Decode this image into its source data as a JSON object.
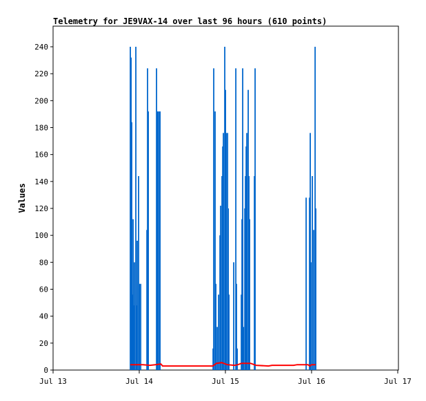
{
  "chart_data": {
    "type": "bar",
    "title": "Telemetry for JE9VAX-14 over last 96 hours (610 points)",
    "xlabel": "",
    "ylabel": "Values",
    "ylim": [
      0,
      255
    ],
    "yticks": [
      0,
      20,
      40,
      60,
      80,
      100,
      120,
      140,
      160,
      180,
      200,
      220,
      240
    ],
    "xlim": [
      "Jul 13 00:00",
      "Jul 17 00:00"
    ],
    "xticks": [
      "Jul 13",
      "Jul 14",
      "Jul 15",
      "Jul 16",
      "Jul 17"
    ],
    "grid": false,
    "colors": {
      "bars": "#0066cc",
      "line": "#ff0000"
    },
    "series": [
      {
        "type": "bar",
        "points": [
          [
            "Jul 13 21:30",
            240
          ],
          [
            "Jul 13 21:42",
            232
          ],
          [
            "Jul 13 21:53",
            184
          ],
          [
            "Jul 13 22:05",
            56
          ],
          [
            "Jul 13 22:16",
            112
          ],
          [
            "Jul 13 22:28",
            48
          ],
          [
            "Jul 13 22:39",
            80
          ],
          [
            "Jul 13 23:02",
            240
          ],
          [
            "Jul 13 23:14",
            48
          ],
          [
            "Jul 13 23:25",
            96
          ],
          [
            "Jul 13 23:48",
            144
          ],
          [
            "Jul 14 00:00",
            64
          ],
          [
            "Jul 14 00:23",
            64
          ],
          [
            "Jul 14 02:07",
            104
          ],
          [
            "Jul 14 02:18",
            224
          ],
          [
            "Jul 14 02:30",
            192
          ],
          [
            "Jul 14 04:48",
            224
          ],
          [
            "Jul 14 04:59",
            192
          ],
          [
            "Jul 14 05:11",
            192
          ],
          [
            "Jul 14 05:34",
            192
          ],
          [
            "Jul 14 05:46",
            192
          ],
          [
            "Jul 14 20:33",
            16
          ],
          [
            "Jul 14 20:44",
            224
          ],
          [
            "Jul 14 21:07",
            192
          ],
          [
            "Jul 14 21:19",
            64
          ],
          [
            "Jul 14 21:42",
            32
          ],
          [
            "Jul 14 22:05",
            56
          ],
          [
            "Jul 14 22:28",
            100
          ],
          [
            "Jul 14 22:39",
            122
          ],
          [
            "Jul 14 23:02",
            144
          ],
          [
            "Jul 14 23:14",
            166
          ],
          [
            "Jul 14 23:25",
            176
          ],
          [
            "Jul 14 23:48",
            240
          ],
          [
            "Jul 15 00:00",
            208
          ],
          [
            "Jul 15 00:12",
            176
          ],
          [
            "Jul 15 00:35",
            176
          ],
          [
            "Jul 15 00:46",
            120
          ],
          [
            "Jul 15 00:58",
            56
          ],
          [
            "Jul 15 02:18",
            80
          ],
          [
            "Jul 15 02:53",
            224
          ],
          [
            "Jul 15 03:04",
            64
          ],
          [
            "Jul 15 03:16",
            16
          ],
          [
            "Jul 15 04:25",
            56
          ],
          [
            "Jul 15 04:36",
            112
          ],
          [
            "Jul 15 04:48",
            224
          ],
          [
            "Jul 15 05:00",
            32
          ],
          [
            "Jul 15 05:23",
            120
          ],
          [
            "Jul 15 05:34",
            144
          ],
          [
            "Jul 15 05:46",
            166
          ],
          [
            "Jul 15 05:57",
            176
          ],
          [
            "Jul 15 06:20",
            208
          ],
          [
            "Jul 15 06:32",
            144
          ],
          [
            "Jul 15 06:43",
            112
          ],
          [
            "Jul 15 08:04",
            144
          ],
          [
            "Jul 15 08:15",
            224
          ],
          [
            "Jul 15 22:28",
            128
          ],
          [
            "Jul 15 23:25",
            128
          ],
          [
            "Jul 15 23:37",
            176
          ],
          [
            "Jul 15 23:48",
            80
          ],
          [
            "Jul 16 00:12",
            144
          ],
          [
            "Jul 16 00:35",
            104
          ],
          [
            "Jul 16 00:58",
            240
          ],
          [
            "Jul 16 01:09",
            120
          ]
        ]
      },
      {
        "type": "line",
        "points": [
          [
            "Jul 13 21:30",
            4
          ],
          [
            "Jul 14 01:00",
            4
          ],
          [
            "Jul 14 03:00",
            3.5
          ],
          [
            "Jul 14 04:30",
            4
          ],
          [
            "Jul 14 06:00",
            4.5
          ],
          [
            "Jul 14 06:30",
            3
          ],
          [
            "Jul 14 20:30",
            3
          ],
          [
            "Jul 14 21:30",
            5
          ],
          [
            "Jul 14 23:00",
            5.5
          ],
          [
            "Jul 15 00:30",
            4
          ],
          [
            "Jul 15 02:30",
            3.5
          ],
          [
            "Jul 15 03:30",
            4
          ],
          [
            "Jul 15 04:30",
            5
          ],
          [
            "Jul 15 07:00",
            5
          ],
          [
            "Jul 15 08:30",
            3.5
          ],
          [
            "Jul 15 12:00",
            3
          ],
          [
            "Jul 15 13:00",
            3.5
          ],
          [
            "Jul 15 19:00",
            3.5
          ],
          [
            "Jul 15 20:00",
            4
          ],
          [
            "Jul 15 23:00",
            4
          ],
          [
            "Jul 15 23:30",
            3
          ],
          [
            "Jul 16 00:00",
            4
          ],
          [
            "Jul 16 01:09",
            4
          ]
        ]
      }
    ]
  }
}
